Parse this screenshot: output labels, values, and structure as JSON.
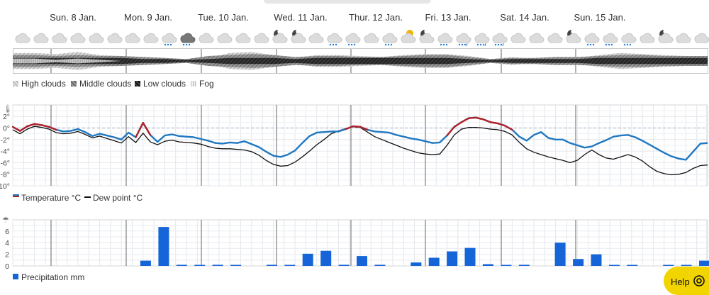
{
  "days": [
    "Sun. 8 Jan.",
    "Mon. 9 Jan.",
    "Tue. 10 Jan.",
    "Wed. 11 Jan.",
    "Thur. 12 Jan.",
    "Fri. 13 Jan.",
    "Sat. 14 Jan.",
    "Sun. 15 Jan."
  ],
  "weather_icons": [
    "cloud",
    "cloud",
    "cloud",
    "cloud",
    "cloud",
    "cloud",
    "cloud",
    "cloud",
    "cloud-snow-light",
    "cloud-dark-snow",
    "cloud",
    "cloud",
    "cloud",
    "cloud",
    "moon-cloud",
    "moon-cloud",
    "cloud",
    "cloud-snow-light",
    "cloud-snow-light",
    "cloud",
    "cloud-snow-light",
    "sun-cloud",
    "moon-cloud",
    "cloud-snow-light",
    "cloud-snow-mixed",
    "cloud-snow-mixed",
    "cloud-snow-mixed",
    "cloud",
    "cloud",
    "cloud",
    "moon-cloud",
    "cloud-snow-light",
    "cloud-snow-light",
    "cloud-snow-light",
    "cloud",
    "moon-cloud",
    "cloud",
    "cloud"
  ],
  "colors": {
    "temperature": "#1f78c1",
    "temperature_above_zero": "#b0232a",
    "dew_point": "#111111",
    "precipitation": "#1565d8",
    "help": "#f2d400"
  },
  "cloud_legend": {
    "high": "High clouds",
    "middle": "Middle clouds",
    "low": "Low clouds",
    "fog": "Fog"
  },
  "chart_data": [
    {
      "type": "area",
      "title": "Cloud cover",
      "x": [
        0,
        6,
        12,
        18,
        24,
        30,
        36,
        42,
        48,
        54,
        60,
        66,
        72,
        78,
        84,
        90,
        96,
        102,
        108,
        114,
        120,
        126,
        132,
        138,
        144,
        150,
        156,
        162,
        168,
        174,
        180,
        186,
        192
      ],
      "series": [
        {
          "name": "High clouds",
          "values": [
            0.8,
            0.8,
            0.7,
            0.9,
            0.6,
            0.5,
            0.4,
            0.3,
            0.1,
            0.3,
            0.8,
            0.9,
            0.6,
            0.3,
            0.6,
            0.6,
            0.5,
            0.4,
            0.6,
            0.7,
            0.7,
            0.5,
            0.2,
            0.4,
            0.2,
            0.3,
            0.3,
            0.6,
            0.8,
            0.7,
            0.6,
            0.5,
            0.5
          ]
        },
        {
          "name": "Middle clouds",
          "values": [
            0.6,
            0.6,
            0.5,
            0.6,
            0.5,
            0.5,
            0.4,
            0.3,
            0.2,
            0.5,
            0.6,
            0.7,
            0.6,
            0.4,
            0.5,
            0.5,
            0.4,
            0.4,
            0.5,
            0.6,
            0.6,
            0.4,
            0.2,
            0.3,
            0.3,
            0.4,
            0.4,
            0.5,
            0.6,
            0.6,
            0.5,
            0.5,
            0.5
          ]
        },
        {
          "name": "Low clouds",
          "values": [
            0.3,
            0.3,
            0.3,
            0.3,
            0.3,
            0.3,
            0.2,
            0.2,
            0.1,
            0.2,
            0.3,
            0.3,
            0.3,
            0.2,
            0.3,
            0.3,
            0.3,
            0.3,
            0.3,
            0.3,
            0.3,
            0.2,
            0.1,
            0.2,
            0.2,
            0.2,
            0.2,
            0.3,
            0.3,
            0.3,
            0.3,
            0.3,
            0.3
          ]
        },
        {
          "name": "Fog",
          "values": [
            0.2,
            0.2,
            0.1,
            0.2,
            0.1,
            0.0,
            0.0,
            0.0,
            0.0,
            0.0,
            0.0,
            0.0,
            0.0,
            0.0,
            0.0,
            0.0,
            0.0,
            0.0,
            0.0,
            0.0,
            0.0,
            0.0,
            0.0,
            0.0,
            0.0,
            0.0,
            0.0,
            0.0,
            0.0,
            0.0,
            0.0,
            0.0,
            0.0
          ]
        }
      ]
    },
    {
      "type": "line",
      "xlabel": "",
      "ylabel": "",
      "ylim": [
        -10,
        3
      ],
      "yticks": [
        2,
        0,
        -2,
        -4,
        -6,
        -8,
        -10
      ],
      "ytick_labels": [
        "2°",
        "0°",
        "-2°",
        "-4°",
        "-6°",
        "-8°",
        "-10°"
      ],
      "x": [
        0,
        2,
        4,
        6,
        8,
        10,
        12,
        14,
        16,
        18,
        20,
        22,
        24,
        26,
        28,
        30,
        32,
        34,
        36,
        38,
        40,
        42,
        44,
        46,
        48,
        50,
        52,
        54,
        56,
        58,
        60,
        62,
        64,
        66,
        68,
        70,
        72,
        74,
        76,
        78,
        80,
        82,
        84,
        86,
        88,
        90,
        92,
        94,
        96,
        98,
        100,
        102,
        104,
        106,
        108,
        110,
        112,
        114,
        116,
        118,
        120,
        122,
        124,
        126,
        128,
        130,
        132,
        134,
        136,
        138,
        140,
        142,
        144,
        146,
        148,
        150,
        152,
        154,
        156,
        158,
        160,
        162,
        164,
        166,
        168,
        170,
        172,
        174,
        176,
        178,
        180,
        182,
        184,
        186,
        188,
        190,
        192
      ],
      "series": [
        {
          "name": "Temperature °C",
          "values": [
            0.2,
            -0.5,
            0.3,
            0.7,
            0.5,
            0.2,
            -0.3,
            -0.6,
            -0.5,
            -0.2,
            -0.7,
            -1.4,
            -1.0,
            -1.3,
            -1.6,
            -2.0,
            -0.8,
            -1.6,
            0.9,
            -1.2,
            -2.4,
            -1.3,
            -1.1,
            -1.4,
            -1.5,
            -1.6,
            -1.9,
            -2.2,
            -2.6,
            -2.7,
            -2.5,
            -2.6,
            -2.3,
            -2.8,
            -3.3,
            -4.1,
            -4.8,
            -5.0,
            -4.6,
            -3.9,
            -2.6,
            -1.4,
            -0.8,
            -0.7,
            -0.6,
            -0.6,
            -0.2,
            0.3,
            0.2,
            -0.3,
            -0.6,
            -0.7,
            -0.8,
            -1.2,
            -1.5,
            -1.8,
            -2.0,
            -2.3,
            -2.6,
            -2.5,
            -1.3,
            0.2,
            1.0,
            1.7,
            1.8,
            1.5,
            1.0,
            0.8,
            0.4,
            -0.3,
            -1.5,
            -2.2,
            -1.2,
            -0.7,
            -1.7,
            -2.0,
            -2.0,
            -2.6,
            -3.0,
            -3.4,
            -3.2,
            -2.6,
            -2.1,
            -1.5,
            -1.3,
            -1.2,
            -1.6,
            -2.2,
            -2.9,
            -3.6,
            -4.3,
            -4.9,
            -5.3,
            -5.5,
            -4.1,
            -2.7,
            -2.6
          ]
        },
        {
          "name": "Dew point °C",
          "values": [
            -0.3,
            -1.0,
            -0.2,
            0.3,
            0.1,
            -0.2,
            -0.8,
            -1.0,
            -0.9,
            -0.6,
            -1.1,
            -1.7,
            -1.4,
            -1.8,
            -2.2,
            -2.6,
            -1.5,
            -2.5,
            -0.9,
            -2.4,
            -2.9,
            -2.3,
            -2.1,
            -2.4,
            -2.5,
            -2.6,
            -2.8,
            -3.2,
            -3.5,
            -3.6,
            -3.6,
            -3.7,
            -3.8,
            -4.1,
            -4.7,
            -5.6,
            -6.3,
            -6.6,
            -6.5,
            -5.9,
            -5.0,
            -4.0,
            -2.9,
            -2.0,
            -1.0,
            -0.5,
            -0.1,
            0.2,
            0.1,
            -0.7,
            -1.5,
            -2.0,
            -2.5,
            -3.0,
            -3.5,
            -3.9,
            -4.3,
            -4.5,
            -4.6,
            -4.5,
            -3.0,
            -1.2,
            -0.2,
            0.1,
            0.1,
            0.0,
            -0.2,
            -0.3,
            -0.6,
            -1.2,
            -2.5,
            -3.6,
            -4.2,
            -4.6,
            -5.0,
            -5.3,
            -5.6,
            -6.0,
            -5.6,
            -4.6,
            -3.8,
            -4.6,
            -5.2,
            -5.4,
            -5.0,
            -4.6,
            -5.0,
            -5.7,
            -6.7,
            -7.5,
            -7.9,
            -8.1,
            -8.0,
            -7.7,
            -7.0,
            -6.5,
            -6.4
          ]
        }
      ]
    },
    {
      "type": "bar",
      "ylim": [
        0,
        7
      ],
      "yticks": [
        0,
        2,
        4,
        6
      ],
      "ytick_labels": [
        "0",
        "2",
        "4",
        "6"
      ],
      "x": [
        42,
        48,
        54,
        60,
        66,
        72,
        84,
        90,
        96,
        102,
        108,
        114,
        120,
        132,
        138,
        144,
        150,
        156,
        162,
        168,
        180,
        186,
        192,
        198,
        204,
        216,
        222,
        228
      ],
      "values": [
        0.9,
        6.7,
        0.2,
        0.1,
        0.2,
        0.1,
        0.2,
        0.1,
        2.1,
        2.6,
        0.2,
        1.7,
        0.2,
        0.6,
        1.4,
        2.5,
        3.1,
        0.3,
        0.1,
        0.2,
        4.0,
        1.2,
        2.0,
        0.1,
        0.1,
        0.1,
        0.1,
        0.9
      ],
      "series_name": "Precipitation mm"
    }
  ],
  "help": {
    "label": "Help"
  }
}
